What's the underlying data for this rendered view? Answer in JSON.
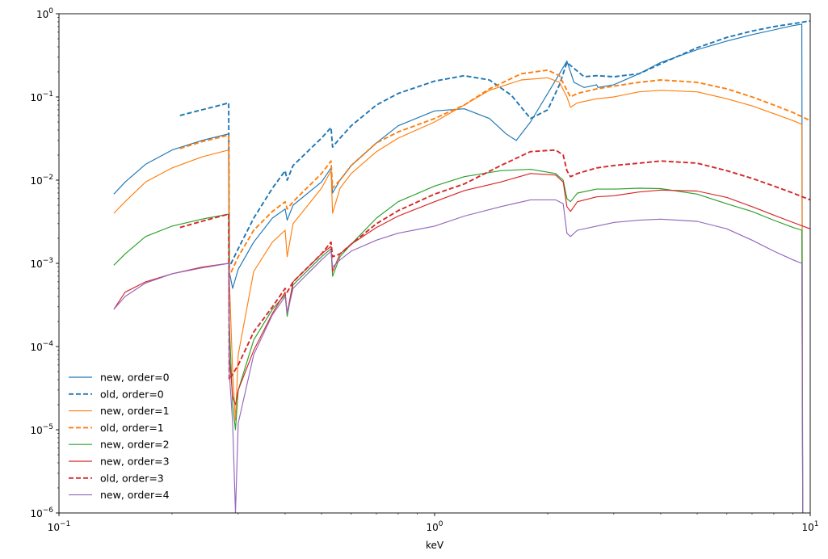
{
  "chart_data": {
    "type": "line",
    "title": "",
    "xlabel": "keV",
    "ylabel": "",
    "xscale": "log",
    "yscale": "log",
    "xlim": [
      0.1,
      10
    ],
    "ylim": [
      1e-06,
      1
    ],
    "grid": false,
    "legend_placement": "lower-left",
    "x_ticks": [
      {
        "value": 0.1,
        "base": "10",
        "exp": "−1"
      },
      {
        "value": 1,
        "base": "10",
        "exp": "0"
      },
      {
        "value": 10,
        "base": "10",
        "exp": "1"
      }
    ],
    "y_ticks": [
      {
        "value": 1e-06,
        "base": "10",
        "exp": "−6"
      },
      {
        "value": 1e-05,
        "base": "10",
        "exp": "−5"
      },
      {
        "value": 0.0001,
        "base": "10",
        "exp": "−4"
      },
      {
        "value": 0.001,
        "base": "10",
        "exp": "−3"
      },
      {
        "value": 0.01,
        "base": "10",
        "exp": "−2"
      },
      {
        "value": 0.1,
        "base": "10",
        "exp": "−1"
      },
      {
        "value": 1,
        "base": "10",
        "exp": "0"
      }
    ],
    "series": [
      {
        "name": "new, order=0",
        "color": "#1f77b4",
        "style": "solid",
        "x": [
          0.14,
          0.15,
          0.17,
          0.2,
          0.24,
          0.283,
          0.284,
          0.29,
          0.3,
          0.33,
          0.37,
          0.4,
          0.405,
          0.42,
          0.5,
          0.53,
          0.535,
          0.56,
          0.6,
          0.7,
          0.8,
          1.0,
          1.2,
          1.4,
          1.55,
          1.65,
          1.8,
          2.0,
          2.15,
          2.25,
          2.35,
          2.5,
          2.7,
          2.72,
          3.0,
          3.5,
          4.0,
          5.0,
          6.0,
          7.0,
          8.0,
          9.0,
          9.5,
          9.55
        ],
        "y": [
          0.0068,
          0.0095,
          0.0155,
          0.023,
          0.03,
          0.036,
          0.0008,
          0.0005,
          0.00085,
          0.0018,
          0.0035,
          0.0045,
          0.0033,
          0.005,
          0.0095,
          0.014,
          0.007,
          0.01,
          0.015,
          0.028,
          0.045,
          0.068,
          0.072,
          0.055,
          0.036,
          0.03,
          0.05,
          0.11,
          0.19,
          0.27,
          0.15,
          0.13,
          0.14,
          0.13,
          0.14,
          0.19,
          0.26,
          0.37,
          0.47,
          0.56,
          0.64,
          0.72,
          0.75,
          1e-06
        ]
      },
      {
        "name": "old, order=0",
        "color": "#1f77b4",
        "style": "dashed",
        "x": [
          0.21,
          0.24,
          0.27,
          0.283,
          0.284,
          0.3,
          0.33,
          0.37,
          0.4,
          0.405,
          0.42,
          0.5,
          0.53,
          0.535,
          0.56,
          0.6,
          0.7,
          0.8,
          1.0,
          1.2,
          1.4,
          1.6,
          1.8,
          2.0,
          2.15,
          2.25,
          2.5,
          2.7,
          3.0,
          3.5,
          4.0,
          5.0,
          6.0,
          7.0,
          8.0,
          9.0,
          10.0
        ],
        "y": [
          0.06,
          0.07,
          0.08,
          0.085,
          0.0009,
          0.0015,
          0.0035,
          0.008,
          0.013,
          0.01,
          0.015,
          0.032,
          0.043,
          0.025,
          0.032,
          0.045,
          0.08,
          0.11,
          0.155,
          0.18,
          0.16,
          0.105,
          0.055,
          0.07,
          0.14,
          0.26,
          0.175,
          0.18,
          0.175,
          0.19,
          0.25,
          0.39,
          0.52,
          0.62,
          0.7,
          0.76,
          0.82
        ]
      },
      {
        "name": "new, order=1",
        "color": "#ff7f0e",
        "style": "solid",
        "x": [
          0.14,
          0.15,
          0.17,
          0.2,
          0.24,
          0.283,
          0.284,
          0.29,
          0.295,
          0.3,
          0.33,
          0.37,
          0.4,
          0.405,
          0.42,
          0.5,
          0.53,
          0.535,
          0.56,
          0.6,
          0.7,
          0.8,
          1.0,
          1.2,
          1.4,
          1.7,
          2.0,
          2.15,
          2.25,
          2.3,
          2.4,
          2.7,
          3.0,
          3.5,
          4.0,
          5.0,
          6.0,
          7.0,
          8.0,
          9.0,
          9.5,
          9.55
        ],
        "y": [
          0.004,
          0.0055,
          0.0095,
          0.014,
          0.019,
          0.023,
          0.0007,
          5e-05,
          1.3e-05,
          8e-05,
          0.0008,
          0.0018,
          0.0025,
          0.0012,
          0.003,
          0.008,
          0.013,
          0.004,
          0.008,
          0.012,
          0.022,
          0.032,
          0.05,
          0.08,
          0.12,
          0.16,
          0.17,
          0.15,
          0.1,
          0.075,
          0.085,
          0.095,
          0.1,
          0.115,
          0.12,
          0.115,
          0.095,
          0.078,
          0.063,
          0.052,
          0.047,
          1e-06
        ]
      },
      {
        "name": "old, order=1",
        "color": "#ff7f0e",
        "style": "dashed",
        "x": [
          0.21,
          0.24,
          0.27,
          0.283,
          0.284,
          0.3,
          0.33,
          0.37,
          0.4,
          0.405,
          0.42,
          0.5,
          0.53,
          0.535,
          0.56,
          0.6,
          0.7,
          0.8,
          1.0,
          1.2,
          1.4,
          1.7,
          2.0,
          2.15,
          2.25,
          2.3,
          2.4,
          2.7,
          3.0,
          3.5,
          4.0,
          5.0,
          6.0,
          7.0,
          8.0,
          9.0,
          10.0
        ],
        "y": [
          0.024,
          0.029,
          0.033,
          0.035,
          0.0007,
          0.0012,
          0.0025,
          0.0042,
          0.0055,
          0.0045,
          0.0055,
          0.012,
          0.017,
          0.008,
          0.01,
          0.015,
          0.028,
          0.038,
          0.055,
          0.08,
          0.125,
          0.19,
          0.21,
          0.18,
          0.12,
          0.1,
          0.11,
          0.125,
          0.135,
          0.15,
          0.16,
          0.15,
          0.125,
          0.1,
          0.08,
          0.065,
          0.052
        ]
      },
      {
        "name": "new, order=2",
        "color": "#2ca02c",
        "style": "solid",
        "x": [
          0.14,
          0.15,
          0.17,
          0.2,
          0.24,
          0.283,
          0.284,
          0.29,
          0.295,
          0.3,
          0.33,
          0.37,
          0.4,
          0.405,
          0.42,
          0.5,
          0.53,
          0.535,
          0.56,
          0.6,
          0.7,
          0.8,
          1.0,
          1.2,
          1.5,
          1.8,
          2.1,
          2.2,
          2.25,
          2.3,
          2.4,
          2.7,
          3.0,
          3.5,
          4.0,
          5.0,
          6.0,
          7.0,
          8.0,
          9.0,
          9.5,
          9.55
        ],
        "y": [
          0.00095,
          0.0013,
          0.0021,
          0.0028,
          0.0034,
          0.0039,
          0.0002,
          2e-05,
          1e-05,
          3e-05,
          0.00012,
          0.00028,
          0.00042,
          0.00023,
          0.00055,
          0.0012,
          0.0015,
          0.0007,
          0.0012,
          0.0017,
          0.0035,
          0.0055,
          0.0085,
          0.011,
          0.013,
          0.0135,
          0.012,
          0.01,
          0.006,
          0.0055,
          0.007,
          0.0078,
          0.0078,
          0.008,
          0.0079,
          0.0068,
          0.0052,
          0.0042,
          0.0033,
          0.0027,
          0.0025,
          1e-06
        ]
      },
      {
        "name": "new, order=3",
        "color": "#d62728",
        "style": "solid",
        "x": [
          0.14,
          0.15,
          0.17,
          0.2,
          0.24,
          0.283,
          0.284,
          0.29,
          0.295,
          0.3,
          0.33,
          0.37,
          0.4,
          0.405,
          0.42,
          0.5,
          0.53,
          0.535,
          0.56,
          0.6,
          0.7,
          0.8,
          1.0,
          1.2,
          1.5,
          1.8,
          2.1,
          2.2,
          2.25,
          2.3,
          2.4,
          2.7,
          3.0,
          3.5,
          4.0,
          5.0,
          6.0,
          7.0,
          8.0,
          9.0,
          10.0
        ],
        "y": [
          0.00028,
          0.00045,
          0.0006,
          0.00075,
          0.0009,
          0.001,
          8e-05,
          2.5e-05,
          2e-05,
          3e-05,
          9e-05,
          0.00025,
          0.00045,
          0.00025,
          0.0006,
          0.0013,
          0.0016,
          0.0008,
          0.0013,
          0.0017,
          0.0027,
          0.0037,
          0.0055,
          0.0075,
          0.0095,
          0.012,
          0.0115,
          0.0095,
          0.0048,
          0.0042,
          0.0055,
          0.0063,
          0.0065,
          0.0072,
          0.0076,
          0.0074,
          0.0062,
          0.0048,
          0.0038,
          0.0031,
          0.0026
        ]
      },
      {
        "name": "old, order=3",
        "color": "#d62728",
        "style": "dashed",
        "x": [
          0.21,
          0.24,
          0.27,
          0.283,
          0.284,
          0.3,
          0.33,
          0.37,
          0.4,
          0.405,
          0.42,
          0.5,
          0.53,
          0.535,
          0.56,
          0.6,
          0.7,
          0.8,
          1.0,
          1.2,
          1.5,
          1.8,
          2.1,
          2.2,
          2.25,
          2.3,
          2.4,
          2.7,
          3.0,
          3.5,
          4.0,
          5.0,
          6.0,
          7.0,
          8.0,
          9.0,
          10.0
        ],
        "y": [
          0.0027,
          0.0032,
          0.0037,
          0.0039,
          4e-05,
          6e-05,
          0.00015,
          0.0003,
          0.0005,
          0.00045,
          0.0006,
          0.0013,
          0.0018,
          0.0012,
          0.0013,
          0.0017,
          0.003,
          0.0043,
          0.0068,
          0.009,
          0.015,
          0.022,
          0.023,
          0.02,
          0.013,
          0.011,
          0.012,
          0.014,
          0.015,
          0.016,
          0.017,
          0.016,
          0.013,
          0.0105,
          0.0085,
          0.007,
          0.0058
        ]
      },
      {
        "name": "new, order=4",
        "color": "#9467bd",
        "style": "solid",
        "x": [
          0.14,
          0.15,
          0.17,
          0.2,
          0.24,
          0.283,
          0.284,
          0.29,
          0.295,
          0.3,
          0.33,
          0.37,
          0.4,
          0.405,
          0.42,
          0.5,
          0.53,
          0.535,
          0.56,
          0.6,
          0.7,
          0.8,
          1.0,
          1.2,
          1.5,
          1.8,
          2.1,
          2.2,
          2.25,
          2.3,
          2.4,
          2.7,
          3.0,
          3.5,
          4.0,
          5.0,
          6.0,
          7.0,
          8.0,
          9.0,
          9.5,
          9.55
        ],
        "y": [
          0.00028,
          0.0004,
          0.00058,
          0.00075,
          0.00088,
          0.001,
          5e-05,
          1.2e-05,
          1e-06,
          1.2e-05,
          8e-05,
          0.00024,
          0.0004,
          0.00025,
          0.0005,
          0.0011,
          0.0014,
          0.0009,
          0.0011,
          0.0014,
          0.0019,
          0.0023,
          0.0028,
          0.0037,
          0.0048,
          0.0058,
          0.0058,
          0.0052,
          0.0023,
          0.0021,
          0.0025,
          0.0028,
          0.0031,
          0.0033,
          0.0034,
          0.0032,
          0.0026,
          0.0019,
          0.0014,
          0.0011,
          0.001,
          1e-06
        ]
      }
    ]
  }
}
